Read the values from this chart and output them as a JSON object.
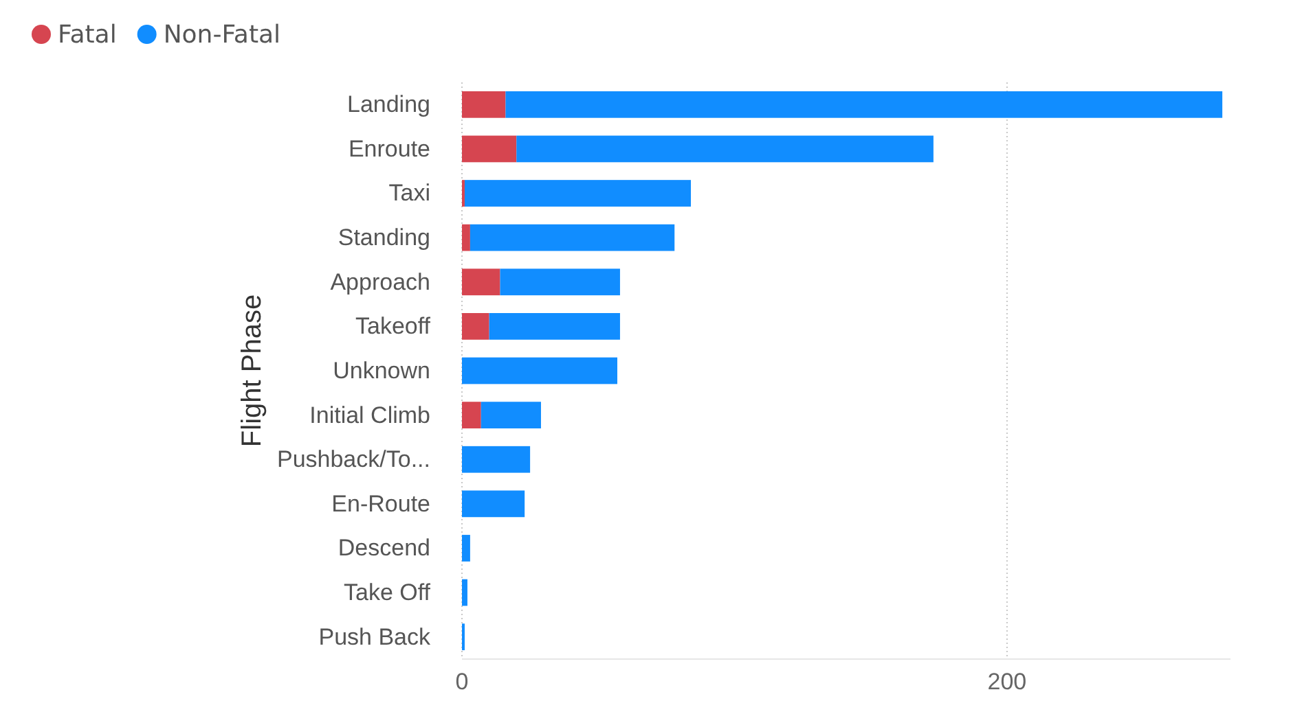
{
  "chart_data": {
    "type": "bar",
    "orientation": "horizontal",
    "stacked": true,
    "ylabel": "Flight Phase",
    "categories": [
      "Landing",
      "Enroute",
      "Taxi",
      "Standing",
      "Approach",
      "Takeoff",
      "Unknown",
      "Initial Climb",
      "Pushback/To...",
      "En-Route",
      "Descend",
      "Take Off",
      "Push Back"
    ],
    "series": [
      {
        "name": "Fatal",
        "color": "#d64550",
        "values": [
          16,
          20,
          1,
          3,
          14,
          10,
          0,
          7,
          0,
          0,
          0,
          0,
          0
        ]
      },
      {
        "name": "Non-Fatal",
        "color": "#118dff",
        "values": [
          263,
          153,
          83,
          75,
          44,
          48,
          57,
          22,
          25,
          23,
          3,
          2,
          1
        ]
      }
    ],
    "xlim": [
      0,
      282
    ],
    "xticks": [
      0,
      200
    ],
    "grid": "x",
    "legend": "top left"
  }
}
